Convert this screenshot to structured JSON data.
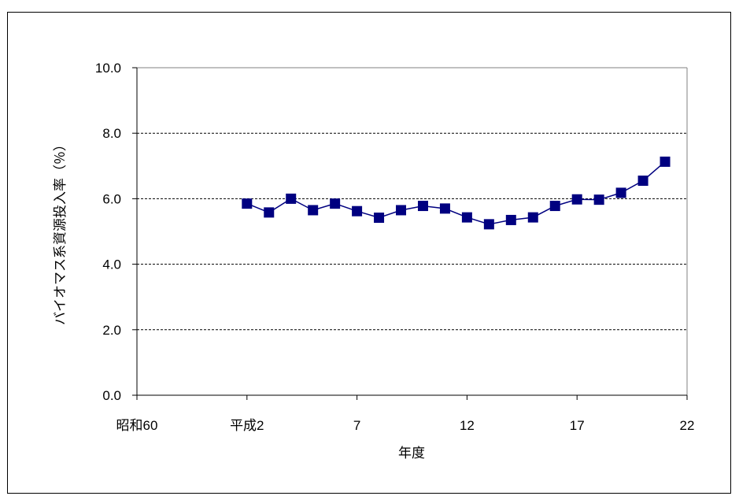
{
  "chart_data": {
    "type": "line",
    "xlabel": "年度",
    "ylabel": "バイオマス系資源投入率（％）",
    "x_ticks": [
      {
        "value": 0,
        "label": "昭和60"
      },
      {
        "value": 5,
        "label": "平成2"
      },
      {
        "value": 10,
        "label": "7"
      },
      {
        "value": 15,
        "label": "12"
      },
      {
        "value": 20,
        "label": "17"
      },
      {
        "value": 25,
        "label": "22"
      }
    ],
    "y_ticks": [
      "0.0",
      "2.0",
      "4.0",
      "6.0",
      "8.0",
      "10.0"
    ],
    "xlim": [
      0,
      25
    ],
    "ylim": [
      0,
      10
    ],
    "grid": true,
    "series": [
      {
        "color": "#000080",
        "x": [
          5,
          6,
          7,
          8,
          9,
          10,
          11,
          12,
          13,
          14,
          15,
          16,
          17,
          18,
          19,
          20,
          21,
          22,
          23,
          24
        ],
        "values": [
          5.85,
          5.58,
          6.0,
          5.65,
          5.85,
          5.62,
          5.42,
          5.65,
          5.78,
          5.7,
          5.43,
          5.22,
          5.35,
          5.43,
          5.78,
          5.98,
          5.97,
          6.18,
          6.55,
          7.13
        ]
      }
    ]
  }
}
